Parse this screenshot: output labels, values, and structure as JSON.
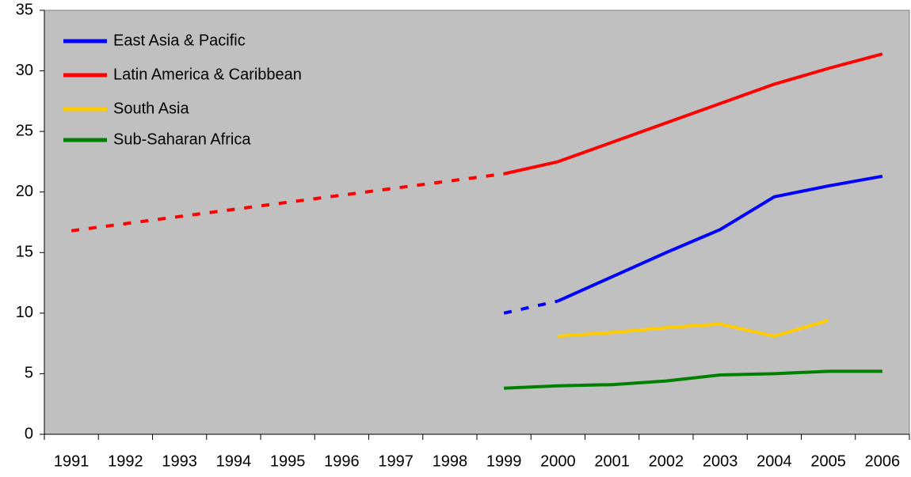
{
  "chart_data": {
    "type": "line",
    "categories": [
      "1991",
      "1992",
      "1993",
      "1994",
      "1995",
      "1996",
      "1997",
      "1998",
      "1999",
      "2000",
      "2001",
      "2002",
      "2003",
      "2004",
      "2005",
      "2006"
    ],
    "series": [
      {
        "name": "East Asia & Pacific",
        "color": "#0000ff",
        "dashed_until": 9,
        "values": [
          null,
          null,
          null,
          null,
          null,
          null,
          null,
          null,
          10.0,
          11.0,
          13.0,
          15.0,
          16.9,
          19.6,
          20.5,
          21.3
        ]
      },
      {
        "name": "Latin America & Caribbean",
        "color": "#ff0000",
        "dashed_until": 8,
        "values": [
          16.8,
          null,
          null,
          null,
          null,
          null,
          null,
          null,
          21.5,
          22.5,
          24.1,
          25.7,
          27.3,
          28.9,
          30.2,
          31.4
        ]
      },
      {
        "name": "South Asia",
        "color": "#ffcc00",
        "values": [
          null,
          null,
          null,
          null,
          null,
          null,
          null,
          null,
          null,
          8.1,
          8.4,
          8.8,
          9.1,
          8.1,
          9.4,
          null
        ]
      },
      {
        "name": "Sub-Saharan Africa",
        "color": "#008000",
        "values": [
          null,
          null,
          null,
          null,
          null,
          null,
          null,
          null,
          3.8,
          4.0,
          4.1,
          4.4,
          4.9,
          5.0,
          5.2,
          5.2
        ]
      }
    ],
    "ylim": [
      0,
      35
    ],
    "yticks": [
      0,
      5,
      10,
      15,
      20,
      25,
      30,
      35
    ],
    "legend": "top-left",
    "plot_background": "#c0c0c0"
  }
}
